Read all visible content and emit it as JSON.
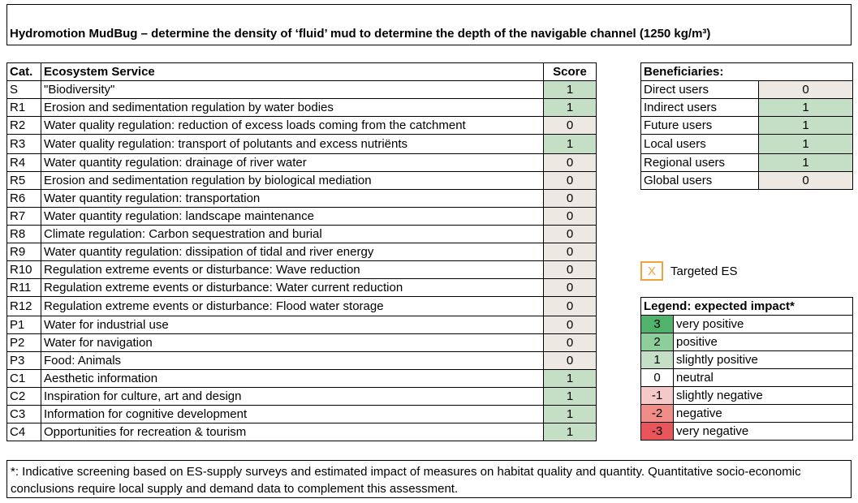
{
  "title": "Hydromotion MudBug – determine the density of ‘fluid’ mud to determine the depth of the navigable channel (1250 kg/m³)",
  "es_table": {
    "headers": {
      "cat": "Cat.",
      "service": "Ecosystem Service",
      "score": "Score"
    },
    "rows": [
      {
        "cat": "S",
        "service": "\"Biodiversity\"",
        "score": "1"
      },
      {
        "cat": "R1",
        "service": "Erosion and sedimentation regulation by water bodies",
        "score": "1"
      },
      {
        "cat": "R2",
        "service": "Water quality regulation: reduction of excess loads coming from the catchment",
        "score": "0"
      },
      {
        "cat": "R3",
        "service": "Water quality regulation: transport of polutants and excess nutriënts",
        "score": "1"
      },
      {
        "cat": "R4",
        "service": "Water quantity regulation: drainage of river water",
        "score": "0"
      },
      {
        "cat": "R5",
        "service": "Erosion and sedimentation regulation by biological mediation",
        "score": "0"
      },
      {
        "cat": "R6",
        "service": "Water quantity regulation: transportation",
        "score": "0"
      },
      {
        "cat": "R7",
        "service": "Water quantity regulation: landscape maintenance",
        "score": "0"
      },
      {
        "cat": "R8",
        "service": "Climate regulation: Carbon sequestration and burial",
        "score": "0"
      },
      {
        "cat": "R9",
        "service": "Water quantity regulation: dissipation of tidal and river energy",
        "score": "0"
      },
      {
        "cat": "R10",
        "service": "Regulation extreme events or disturbance: Wave reduction",
        "score": "0"
      },
      {
        "cat": "R11",
        "service": "Regulation extreme events or disturbance: Water current reduction",
        "score": "0"
      },
      {
        "cat": "R12",
        "service": "Regulation extreme events or disturbance: Flood water storage",
        "score": "0"
      },
      {
        "cat": "P1",
        "service": "Water for industrial use",
        "score": "0"
      },
      {
        "cat": "P2",
        "service": "Water for navigation",
        "score": "0"
      },
      {
        "cat": "P3",
        "service": "Food: Animals",
        "score": "0"
      },
      {
        "cat": "C1",
        "service": "Aesthetic information",
        "score": "1"
      },
      {
        "cat": "C2",
        "service": "Inspiration for culture, art and design",
        "score": "1"
      },
      {
        "cat": "C3",
        "service": "Information for cognitive development",
        "score": "1"
      },
      {
        "cat": "C4",
        "service": "Opportunities for recreation & tourism",
        "score": "1"
      }
    ]
  },
  "beneficiaries": {
    "header": "Beneficiaries:",
    "rows": [
      {
        "label": "Direct users",
        "score": "0"
      },
      {
        "label": "Indirect users",
        "score": "1"
      },
      {
        "label": "Future users",
        "score": "1"
      },
      {
        "label": "Local users",
        "score": "1"
      },
      {
        "label": "Regional users",
        "score": "1"
      },
      {
        "label": "Global users",
        "score": "0"
      }
    ]
  },
  "targeted": {
    "mark": "X",
    "label": "Targeted ES",
    "color": "#f2a23c"
  },
  "legend": {
    "header": "Legend: expected  impact*",
    "rows": [
      {
        "value": "3",
        "label": "very positive",
        "color": "#50b26b"
      },
      {
        "value": "2",
        "label": "positive",
        "color": "#8ece9b"
      },
      {
        "value": "1",
        "label": "slightly positive",
        "color": "#c5dfc6"
      },
      {
        "value": "0",
        "label": "neutral",
        "color": "#ffffff"
      },
      {
        "value": "-1",
        "label": "slightly negative",
        "color": "#f5c9c7"
      },
      {
        "value": "-2",
        "label": "negative",
        "color": "#f08d89"
      },
      {
        "value": "-3",
        "label": "very negative",
        "color": "#e8555a"
      }
    ]
  },
  "note": "*: Indicative screening based on ES-supply surveys and estimated impact of measures on habitat quality and quantity. Quantitative socio-economic conclusions require local supply and demand data to complement this assessment."
}
